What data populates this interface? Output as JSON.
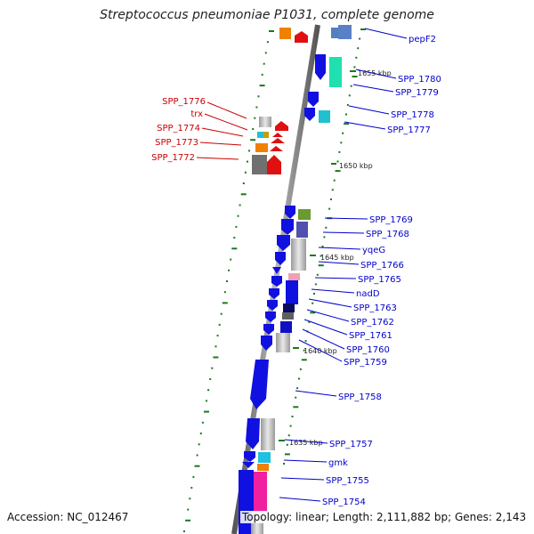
{
  "title": "Streptococcus pneumoniae P1031, complete genome",
  "accession": "Accession: NC_012467",
  "topology": "Topology: linear; Length: 2,111,882 bp; Genes: 2,143",
  "kbp_ticks": [
    "1655 kbp",
    "1650 kbp",
    "1645 kbp",
    "1640 kbp",
    "1635 kbp"
  ],
  "right_genes": [
    "pepF2",
    "SPP_1780",
    "SPP_1779",
    "SPP_1778",
    "SPP_1777",
    "SPP_1769",
    "SPP_1768",
    "yqeG",
    "SPP_1766",
    "SPP_1765",
    "nadD",
    "SPP_1763",
    "SPP_1762",
    "SPP_1761",
    "SPP_1760",
    "SPP_1759",
    "SPP_1758",
    "SPP_1757",
    "gmk",
    "SPP_1755",
    "SPP_1754"
  ],
  "left_genes": [
    "SPP_1776",
    "trx",
    "SPP_1774",
    "SPP_1773",
    "SPP_1772"
  ],
  "colors": {
    "forward": "#1010e0",
    "highlight": "#e01010",
    "right_label": "#0000cc",
    "left_label": "#cc0000",
    "backbone": "#777777",
    "tick": "#1a7a1a"
  }
}
